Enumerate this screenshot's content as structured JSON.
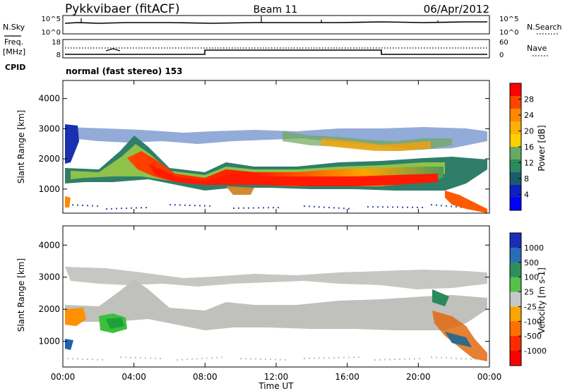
{
  "header": {
    "station": "Pykkvibaer (fitACF)",
    "beam": "Beam 11",
    "date": "06/Apr/2012"
  },
  "noise_panel": {
    "left_label": "N.Sky",
    "right_label": "N.Search",
    "left_ticks": [
      "10^5",
      "10^0"
    ],
    "right_ticks": [
      "10^5",
      "10^0"
    ]
  },
  "freq_panel": {
    "left_label_1": "Freq.",
    "left_label_2": "[MHz]",
    "right_label": "Nave",
    "left_ticks": [
      "18",
      "8"
    ],
    "right_ticks": [
      "60",
      "0"
    ]
  },
  "cpid": {
    "label": "CPID",
    "text": "normal (fast stereo) 153"
  },
  "x_axis": {
    "label": "Time UT",
    "ticks": [
      "00:00",
      "04:00",
      "08:00",
      "12:00",
      "16:00",
      "20:00",
      "00:00"
    ]
  },
  "chart_data": [
    {
      "type": "heatmap",
      "panel": "power",
      "ylabel": "Slant Range [km]",
      "yticks": [
        1000,
        2000,
        3000,
        4000
      ],
      "ylim": [
        200,
        4600
      ],
      "xlim_hours": [
        0,
        24
      ],
      "colorbar": {
        "label": "Power [dB]",
        "ticks": [
          "28",
          "24",
          "20",
          "16",
          "12",
          "8",
          "4"
        ],
        "colors": [
          "#ff0000",
          "#ff4400",
          "#ff8800",
          "#ffb000",
          "#ffd000",
          "#66aa66",
          "#2d8a5a",
          "#1a5c6e",
          "#1020c0",
          "#0000ff"
        ]
      },
      "bands": [
        {
          "name": "main",
          "points": [
            [
              0,
              1500
            ],
            [
              1,
              1500
            ],
            [
              2,
              1750
            ],
            [
              3,
              2100
            ],
            [
              4,
              2500
            ],
            [
              5,
              1900
            ],
            [
              6,
              1650
            ],
            [
              7,
              1500
            ],
            [
              8,
              1380
            ],
            [
              9,
              1550
            ],
            [
              10,
              1500
            ],
            [
              11,
              1450
            ],
            [
              12,
              1400
            ],
            [
              13,
              1400
            ],
            [
              14,
              1350
            ],
            [
              15,
              1300
            ],
            [
              16,
              1300
            ],
            [
              17,
              1300
            ],
            [
              18,
              1300
            ],
            [
              19,
              1300
            ],
            [
              20,
              1300
            ],
            [
              21,
              1300
            ],
            [
              22,
              900
            ],
            [
              23,
              500
            ],
            [
              23.9,
              300
            ]
          ]
        },
        {
          "name": "upper",
          "points": [
            [
              0,
              2950
            ],
            [
              2,
              2900
            ],
            [
              4,
              2500
            ],
            [
              6,
              2700
            ],
            [
              8,
              2700
            ],
            [
              10,
              2850
            ],
            [
              12,
              2800
            ],
            [
              14,
              2700
            ],
            [
              16,
              2750
            ],
            [
              18,
              2800
            ],
            [
              20,
              2700
            ],
            [
              22,
              2500
            ],
            [
              24,
              2700
            ]
          ]
        }
      ]
    },
    {
      "type": "heatmap",
      "panel": "velocity",
      "ylabel": "Slant Range [km]",
      "yticks": [
        1000,
        2000,
        3000,
        4000
      ],
      "ylim": [
        200,
        4600
      ],
      "xlim_hours": [
        0,
        24
      ],
      "colorbar": {
        "label": "Velocity [m s-1]",
        "ticks": [
          "1000",
          "500",
          "100",
          "25",
          "-25",
          "-100",
          "-500",
          "-1000"
        ],
        "colors": [
          "#1a2eb5",
          "#2a6cb8",
          "#2f8f5a",
          "#55c04a",
          "#c8c8c8",
          "#ffa500",
          "#ff7000",
          "#ff2a00",
          "#ff0000"
        ]
      },
      "regions": [
        {
          "name": "grey-main",
          "color": "#c0c0bc"
        },
        {
          "name": "green-patch",
          "color": "#45c045",
          "x": [
            2.0,
            3.2
          ],
          "y": [
            1200,
            1650
          ]
        },
        {
          "name": "orange-patch",
          "color": "#ff8800",
          "x": [
            0.0,
            1.0
          ],
          "y": [
            1300,
            1750
          ]
        }
      ]
    }
  ]
}
